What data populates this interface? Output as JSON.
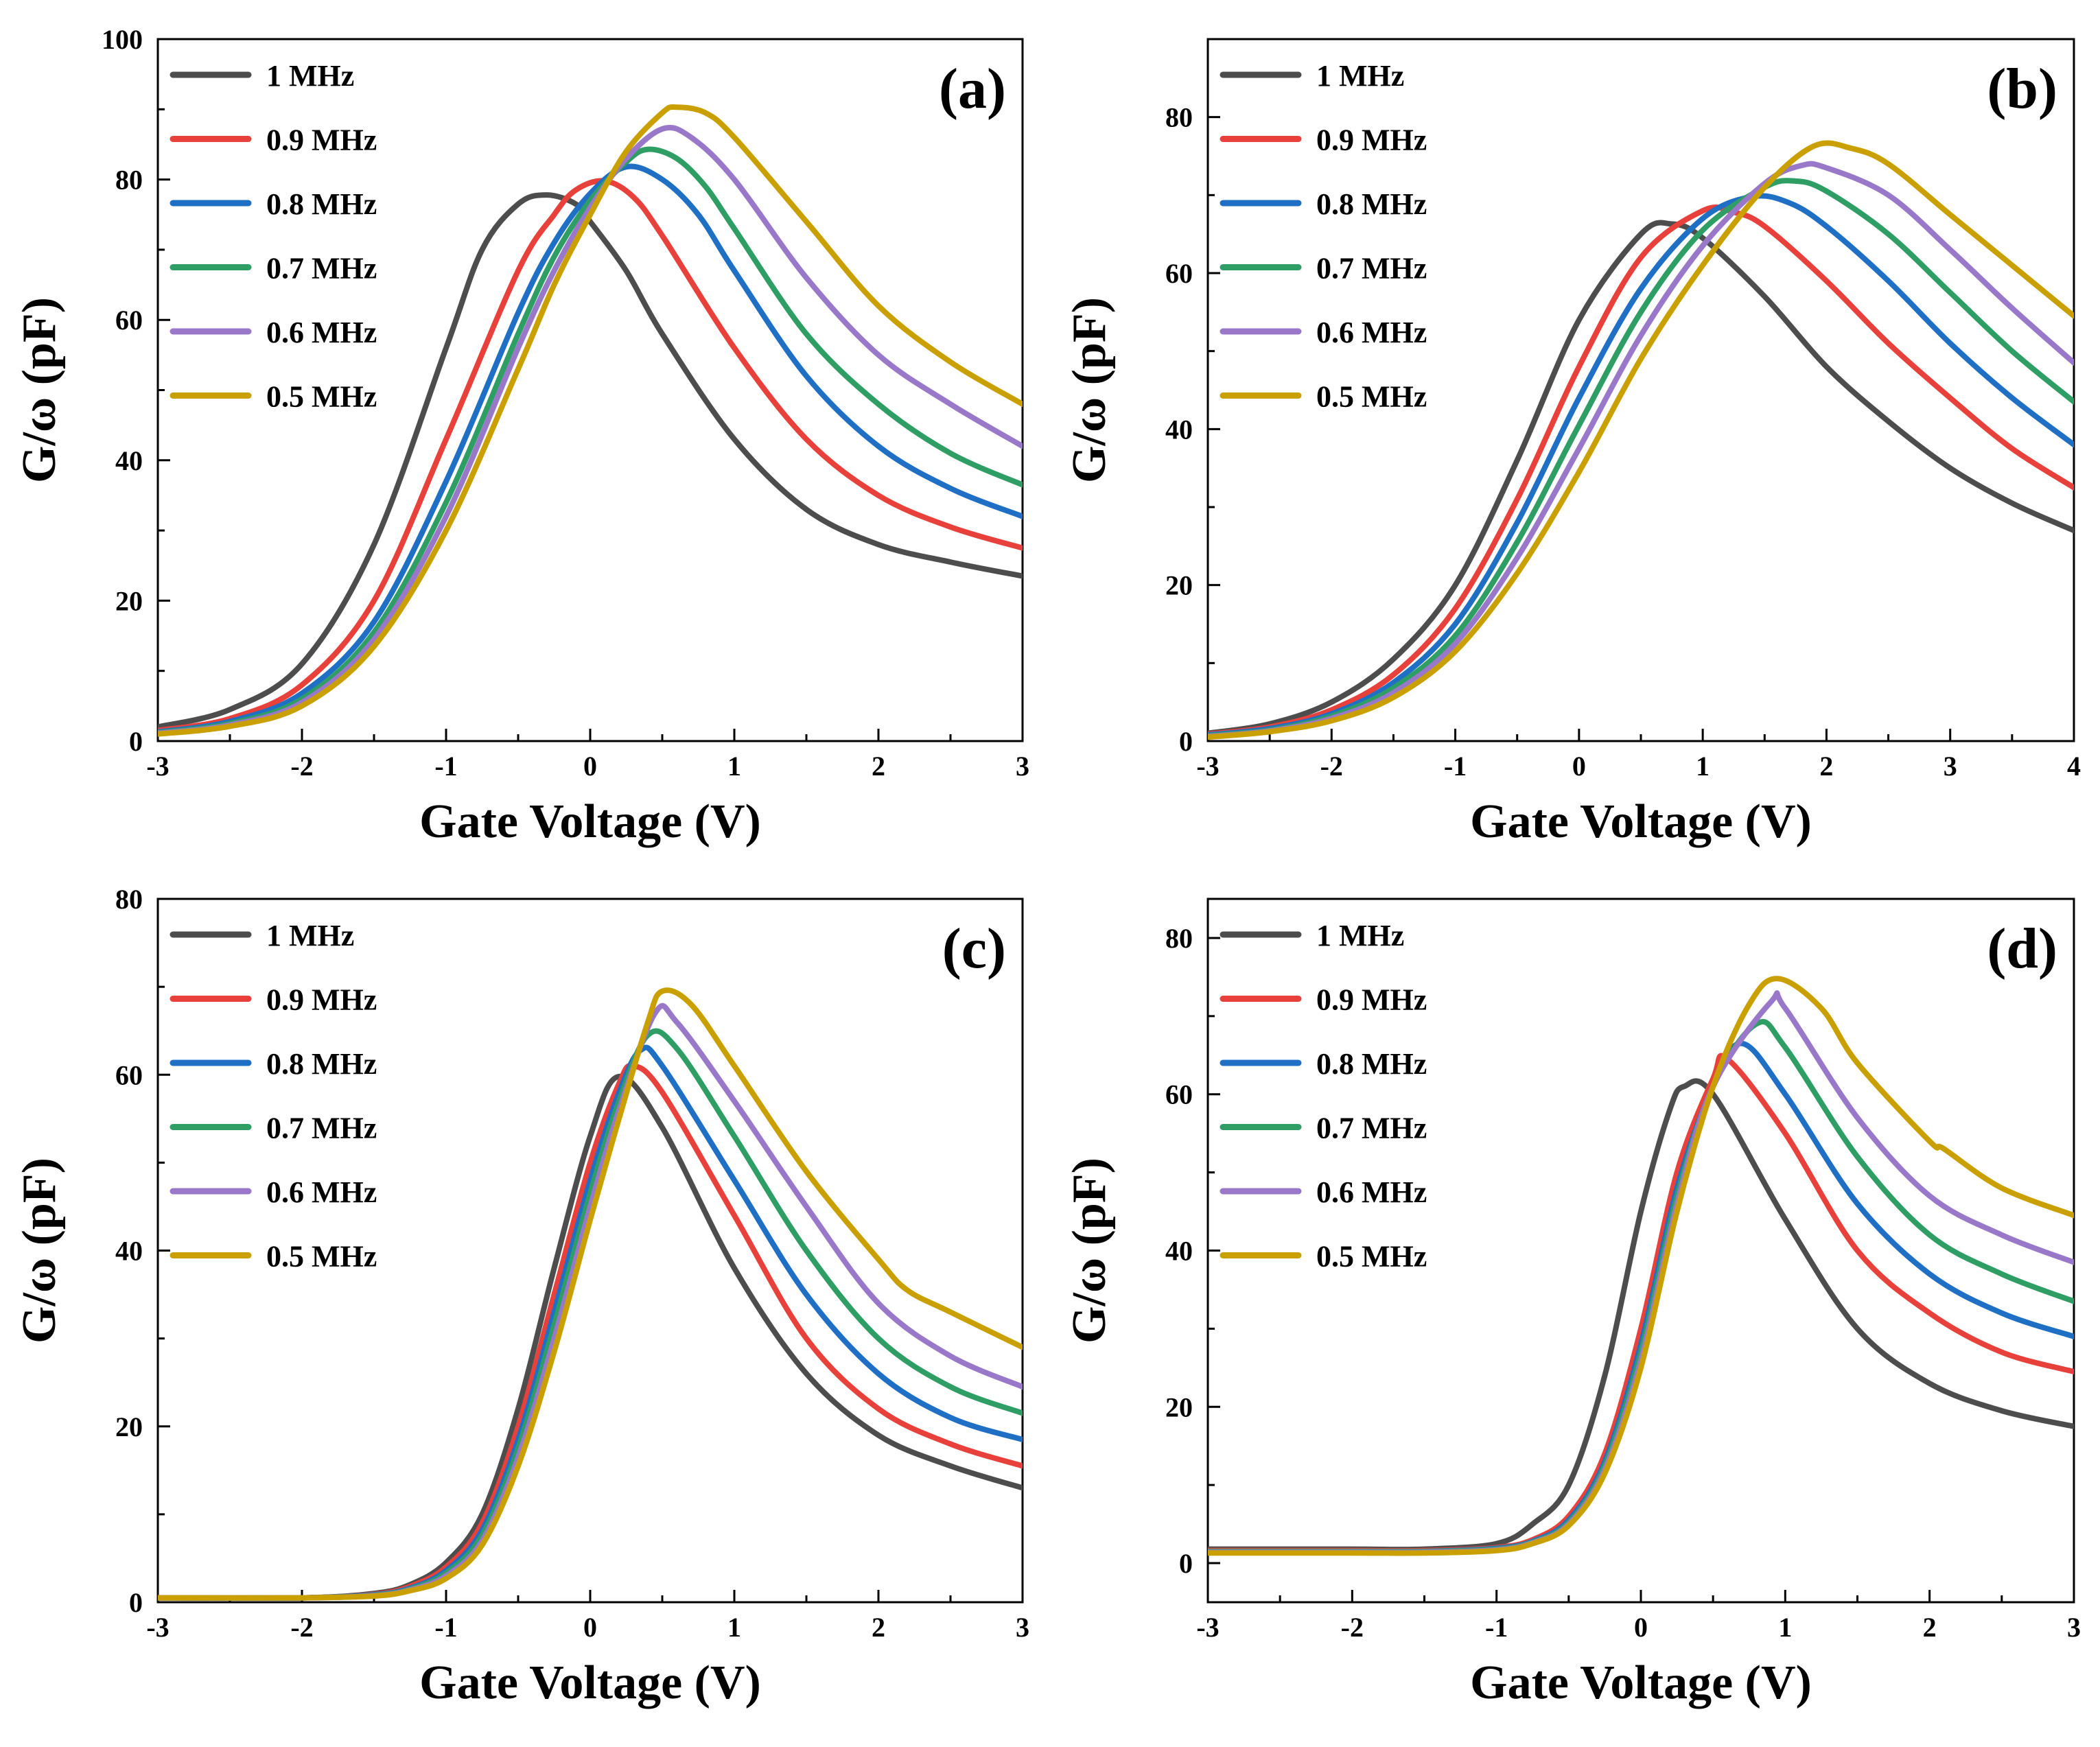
{
  "figure": {
    "colors": {
      "1 MHz": "#4d4d4d",
      "0.9 MHz": "#e8413b",
      "0.8 MHz": "#1f6fc5",
      "0.7 MHz": "#2f9e64",
      "0.6 MHz": "#9a78c9",
      "0.5 MHz": "#c9a000"
    }
  },
  "chart_data": [
    {
      "type": "line",
      "panel_label": "(a)",
      "xlabel": "Gate Voltage (V)",
      "ylabel": "G/ω (pF)",
      "xlim": [
        -3,
        3
      ],
      "ylim": [
        0,
        100
      ],
      "xticks": [
        -3,
        -2,
        -1,
        0,
        1,
        2,
        3
      ],
      "yticks": [
        0,
        20,
        40,
        60,
        80,
        100
      ],
      "legend_position": "top-left",
      "series": [
        {
          "name": "1 MHz",
          "x": [
            -3,
            -2.5,
            -2,
            -1.5,
            -1,
            -0.75,
            -0.5,
            -0.3,
            -0.1,
            0,
            0.25,
            0.5,
            1,
            1.5,
            2,
            2.5,
            3
          ],
          "y": [
            2,
            4.5,
            11,
            28,
            56,
            70,
            76.5,
            77.8,
            76.5,
            74,
            67,
            58,
            43,
            33,
            28,
            25.5,
            23.5
          ]
        },
        {
          "name": "0.9 MHz",
          "x": [
            -3,
            -2.5,
            -2,
            -1.5,
            -1,
            -0.5,
            -0.25,
            -0.1,
            0.1,
            0.3,
            0.5,
            1,
            1.5,
            2,
            2.5,
            3
          ],
          "y": [
            1.5,
            3.2,
            8,
            20,
            43,
            67,
            75,
            78.5,
            79.8,
            77.5,
            72,
            56,
            43,
            35,
            30.5,
            27.5
          ]
        },
        {
          "name": "0.8 MHz",
          "x": [
            -3,
            -2.5,
            -2,
            -1.5,
            -1,
            -0.5,
            -0.25,
            0,
            0.25,
            0.5,
            0.75,
            1,
            1.5,
            2,
            2.5,
            3
          ],
          "y": [
            1.3,
            2.8,
            6.8,
            17,
            37,
            61,
            71,
            78,
            81.8,
            80,
            75,
            67,
            52,
            42,
            36,
            32
          ]
        },
        {
          "name": "0.7 MHz",
          "x": [
            -3,
            -2.5,
            -2,
            -1.5,
            -1,
            -0.5,
            -0.25,
            0,
            0.25,
            0.4,
            0.6,
            0.8,
            1,
            1.5,
            2,
            2.5,
            3
          ],
          "y": [
            1.2,
            2.5,
            6,
            15.5,
            34,
            58,
            69,
            77,
            82.5,
            84.3,
            83,
            79,
            73,
            58,
            48,
            41,
            36.5
          ]
        },
        {
          "name": "0.6 MHz",
          "x": [
            -3,
            -2.5,
            -2,
            -1.5,
            -1,
            -0.5,
            -0.25,
            0,
            0.25,
            0.5,
            0.7,
            1,
            1.5,
            2,
            2.5,
            3
          ],
          "y": [
            1.1,
            2.3,
            5.5,
            14.5,
            32,
            56,
            67,
            76,
            83,
            87.2,
            86,
            80,
            66,
            55,
            48,
            42
          ]
        },
        {
          "name": "0.5 MHz",
          "x": [
            -3,
            -2.5,
            -2,
            -1.5,
            -1,
            -0.5,
            -0.25,
            0,
            0.25,
            0.5,
            0.6,
            0.8,
            1,
            1.5,
            2,
            2.5,
            3
          ],
          "y": [
            1,
            2.1,
            5,
            13.5,
            30,
            53,
            65,
            75,
            84,
            89.5,
            90.3,
            89.5,
            86,
            74,
            62,
            54,
            48
          ]
        }
      ]
    },
    {
      "type": "line",
      "panel_label": "(b)",
      "xlabel": "Gate Voltage (V)",
      "ylabel": "G/ω (pF)",
      "xlim": [
        -3,
        4
      ],
      "ylim": [
        0,
        90
      ],
      "xticks": [
        -3,
        -2,
        -1,
        0,
        1,
        2,
        3,
        4
      ],
      "yticks": [
        0,
        20,
        40,
        60,
        80
      ],
      "legend_position": "top-left",
      "series": [
        {
          "name": "1 MHz",
          "x": [
            -3,
            -2.5,
            -2,
            -1.5,
            -1,
            -0.5,
            0,
            0.5,
            0.75,
            1,
            1.5,
            2,
            2.5,
            3,
            3.5,
            4
          ],
          "y": [
            1,
            2.2,
            5,
            10.5,
            20,
            36,
            54,
            65,
            66.3,
            64.5,
            57,
            48,
            41,
            35,
            30.5,
            27
          ]
        },
        {
          "name": "0.9 MHz",
          "x": [
            -3,
            -2.5,
            -2,
            -1.5,
            -1,
            -0.5,
            0,
            0.5,
            1,
            1.25,
            1.5,
            2,
            2.5,
            3,
            3.5,
            4
          ],
          "y": [
            0.9,
            1.8,
            4,
            8.5,
            17,
            31,
            48,
            62,
            68,
            67.8,
            66,
            59,
            51,
            44,
            37.5,
            32.5
          ]
        },
        {
          "name": "0.8 MHz",
          "x": [
            -3,
            -2.5,
            -2,
            -1.5,
            -1,
            -0.5,
            0,
            0.5,
            1,
            1.4,
            1.7,
            2,
            2.5,
            3,
            3.5,
            4
          ],
          "y": [
            0.8,
            1.6,
            3.5,
            7.5,
            15,
            28,
            44,
            58,
            67,
            69.8,
            69,
            66,
            59,
            51,
            44,
            38
          ]
        },
        {
          "name": "0.7 MHz",
          "x": [
            -3,
            -2.5,
            -2,
            -1.5,
            -1,
            -0.5,
            0,
            0.5,
            1,
            1.5,
            1.75,
            2,
            2.5,
            3,
            3.5,
            4
          ],
          "y": [
            0.7,
            1.4,
            3.2,
            6.8,
            13.5,
            25.5,
            40.5,
            55,
            65.5,
            71,
            71.8,
            70.5,
            65,
            57.5,
            50,
            43.5
          ]
        },
        {
          "name": "0.6 MHz",
          "x": [
            -3,
            -2.5,
            -2,
            -1.5,
            -1,
            -0.5,
            0,
            0.5,
            1,
            1.5,
            1.8,
            2,
            2.5,
            3,
            3.5,
            4
          ],
          "y": [
            0.6,
            1.3,
            2.9,
            6.2,
            12.5,
            23.5,
            37.5,
            52,
            63.5,
            71.5,
            73.8,
            73.5,
            70,
            63,
            55.5,
            48.5
          ]
        },
        {
          "name": "0.5 MHz",
          "x": [
            -3,
            -2.5,
            -2,
            -1.5,
            -1,
            -0.5,
            0,
            0.5,
            1,
            1.5,
            1.9,
            2.2,
            2.5,
            3,
            3.5,
            4
          ],
          "y": [
            0.5,
            1.2,
            2.6,
            5.6,
            11.5,
            21.5,
            34.5,
            49,
            61,
            71,
            76.3,
            76,
            74,
            67.5,
            61,
            54.5
          ]
        }
      ]
    },
    {
      "type": "line",
      "panel_label": "(c)",
      "xlabel": "Gate Voltage (V)",
      "ylabel": "G/ω (pF)",
      "xlim": [
        -3,
        3
      ],
      "ylim": [
        0,
        80
      ],
      "xticks": [
        -3,
        -2,
        -1,
        0,
        1,
        2,
        3
      ],
      "yticks": [
        0,
        20,
        40,
        60,
        80
      ],
      "legend_position": "top-left",
      "series": [
        {
          "name": "1 MHz",
          "x": [
            -3,
            -2,
            -1.5,
            -1.25,
            -1,
            -0.75,
            -0.5,
            -0.25,
            0,
            0.2,
            0.5,
            1,
            1.5,
            2,
            2.5,
            3
          ],
          "y": [
            0.5,
            0.5,
            1,
            2,
            4.5,
            10,
            22,
            38,
            53,
            59.8,
            54,
            38,
            26,
            19,
            15.5,
            13
          ]
        },
        {
          "name": "0.9 MHz",
          "x": [
            -3,
            -2,
            -1.5,
            -1.25,
            -1,
            -0.75,
            -0.5,
            -0.25,
            0,
            0.2,
            0.3,
            0.5,
            1,
            1.5,
            2,
            2.5,
            3
          ],
          "y": [
            0.5,
            0.5,
            0.9,
            1.8,
            4,
            9,
            20,
            35,
            50,
            59,
            61,
            58,
            44,
            30,
            22,
            18,
            15.5
          ]
        },
        {
          "name": "0.8 MHz",
          "x": [
            -3,
            -2,
            -1.5,
            -1.25,
            -1,
            -0.75,
            -0.5,
            -0.25,
            0,
            0.2,
            0.35,
            0.5,
            1,
            1.5,
            2,
            2.5,
            3
          ],
          "y": [
            0.5,
            0.5,
            0.85,
            1.6,
            3.6,
            8.2,
            18.5,
            33,
            48,
            58,
            62.8,
            61,
            48,
            35,
            26,
            21,
            18.5
          ]
        },
        {
          "name": "0.7 MHz",
          "x": [
            -3,
            -2,
            -1.5,
            -1.25,
            -1,
            -0.75,
            -0.5,
            -0.25,
            0,
            0.2,
            0.4,
            0.6,
            1,
            1.5,
            2,
            2.5,
            3
          ],
          "y": [
            0.5,
            0.5,
            0.8,
            1.5,
            3.3,
            7.6,
            17.5,
            31.5,
            46.5,
            57,
            64.5,
            63,
            53,
            40,
            30,
            24.5,
            21.5
          ]
        },
        {
          "name": "0.6 MHz",
          "x": [
            -3,
            -2,
            -1.5,
            -1.25,
            -1,
            -0.75,
            -0.5,
            -0.25,
            0,
            0.2,
            0.45,
            0.6,
            1,
            1.5,
            2,
            2.5,
            3
          ],
          "y": [
            0.5,
            0.5,
            0.75,
            1.4,
            3,
            7,
            16.5,
            30,
            45,
            56,
            67,
            66,
            57,
            45,
            34,
            28,
            24.5
          ]
        },
        {
          "name": "0.5 MHz",
          "x": [
            -3,
            -2,
            -1.5,
            -1.25,
            -1,
            -0.75,
            -0.5,
            -0.25,
            0,
            0.2,
            0.4,
            0.5,
            0.7,
            1,
            1.5,
            2,
            2.2,
            2.5,
            3
          ],
          "y": [
            0.5,
            0.5,
            0.7,
            1.3,
            2.7,
            6.5,
            15.5,
            28.5,
            43.5,
            55,
            66,
            69.5,
            68,
            61,
            49,
            39,
            35.5,
            33,
            29
          ]
        }
      ]
    },
    {
      "type": "line",
      "panel_label": "(d)",
      "xlabel": "Gate Voltage (V)",
      "ylabel": "G/ω (pF)",
      "xlim": [
        -3,
        3
      ],
      "ylim": [
        -5,
        85
      ],
      "xticks": [
        -3,
        -2,
        -1,
        0,
        1,
        2,
        3
      ],
      "yticks": [
        0,
        20,
        40,
        60,
        80
      ],
      "legend_position": "top-left",
      "series": [
        {
          "name": "1 MHz",
          "x": [
            -3,
            -2,
            -1.5,
            -1,
            -0.75,
            -0.5,
            -0.25,
            0,
            0.2,
            0.3,
            0.5,
            1,
            1.5,
            2,
            2.5,
            3
          ],
          "y": [
            1.8,
            1.8,
            1.8,
            2.5,
            5,
            10,
            24,
            45,
            58,
            61,
            60,
            44,
            30,
            23,
            19.5,
            17.5
          ]
        },
        {
          "name": "0.9 MHz",
          "x": [
            -3,
            -2,
            -1.5,
            -1,
            -0.75,
            -0.5,
            -0.25,
            0,
            0.25,
            0.5,
            0.6,
            1,
            1.5,
            2,
            2.5,
            3
          ],
          "y": [
            1.6,
            1.6,
            1.6,
            2,
            3,
            6,
            14,
            30,
            50,
            62,
            64.5,
            55,
            40,
            32,
            27,
            24.5
          ]
        },
        {
          "name": "0.8 MHz",
          "x": [
            -3,
            -2,
            -1.5,
            -1,
            -0.75,
            -0.5,
            -0.25,
            0,
            0.25,
            0.5,
            0.7,
            1,
            1.5,
            2,
            2.5,
            3
          ],
          "y": [
            1.5,
            1.5,
            1.5,
            1.9,
            2.8,
            5.5,
            13,
            28,
            48,
            61,
            66.5,
            60,
            46,
            37,
            32,
            29
          ]
        },
        {
          "name": "0.7 MHz",
          "x": [
            -3,
            -2,
            -1.5,
            -1,
            -0.75,
            -0.5,
            -0.25,
            0,
            0.25,
            0.5,
            0.8,
            1,
            1.5,
            2,
            2.5,
            3
          ],
          "y": [
            1.5,
            1.5,
            1.5,
            1.8,
            2.7,
            5.2,
            12.5,
            27,
            47,
            61,
            69,
            66,
            52,
            42,
            37,
            33.5
          ]
        },
        {
          "name": "0.6 MHz",
          "x": [
            -3,
            -2,
            -1.5,
            -1,
            -0.75,
            -0.5,
            -0.25,
            0,
            0.25,
            0.5,
            0.9,
            1,
            1.5,
            2,
            2.5,
            3
          ],
          "y": [
            1.4,
            1.4,
            1.4,
            1.7,
            2.6,
            5,
            12,
            26,
            46,
            61,
            71.8,
            71,
            57,
            47,
            42,
            38.5
          ]
        },
        {
          "name": "0.5 MHz",
          "x": [
            -3,
            -2,
            -1.5,
            -1,
            -0.75,
            -0.5,
            -0.25,
            0,
            0.25,
            0.5,
            0.75,
            0.95,
            1.25,
            1.5,
            2,
            2.1,
            2.5,
            3
          ],
          "y": [
            1.3,
            1.3,
            1.3,
            1.6,
            2.5,
            4.8,
            11.5,
            25,
            45,
            61,
            71.5,
            74.8,
            71,
            64,
            54,
            53,
            48,
            44.5
          ]
        }
      ]
    }
  ]
}
